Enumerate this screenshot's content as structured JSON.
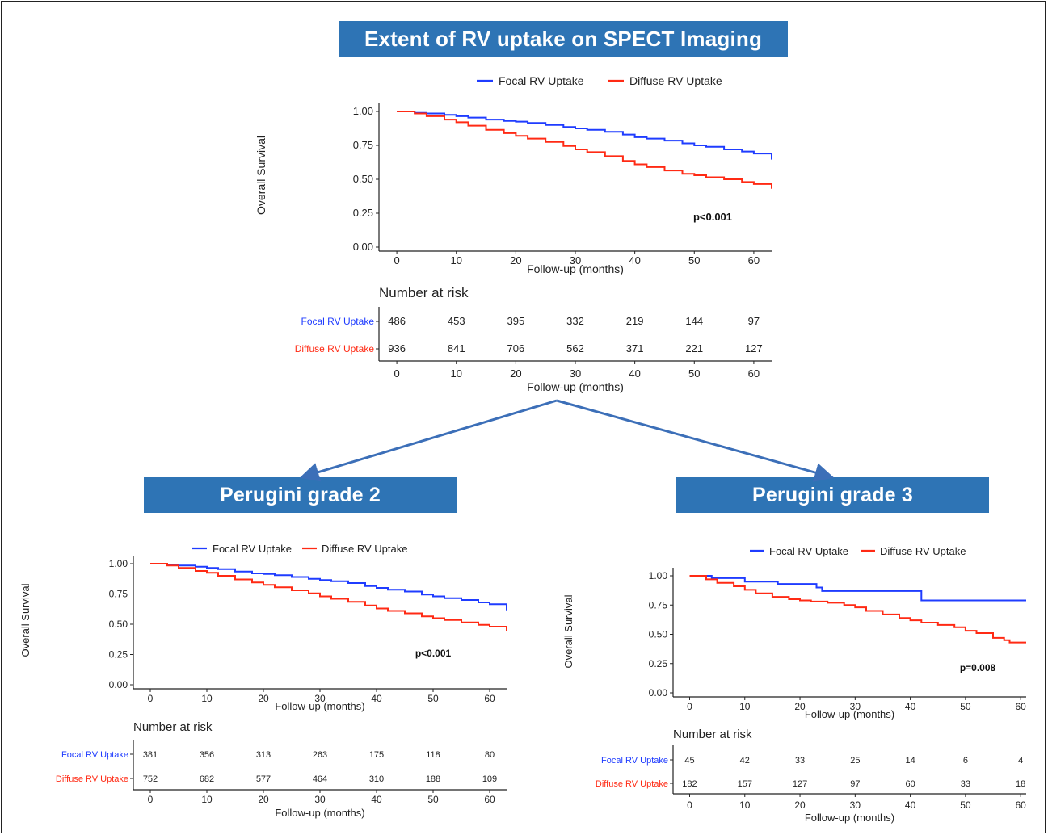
{
  "banners": {
    "main": "Extent of RV uptake on SPECT Imaging",
    "grade2": "Perugini grade 2",
    "grade3": "Perugini grade 3"
  },
  "colors": {
    "focal": "#1f3cff",
    "diffuse": "#ff2a14",
    "banner": "#2e74b5",
    "arrow": "#3c6fb8"
  },
  "chart_data": [
    {
      "id": "main",
      "type": "line",
      "series": [
        {
          "name": "Focal RV Uptake",
          "x": [
            0,
            3,
            5,
            8,
            10,
            12,
            15,
            18,
            20,
            22,
            25,
            28,
            30,
            32,
            35,
            38,
            40,
            42,
            45,
            48,
            50,
            52,
            55,
            58,
            60,
            63
          ],
          "y": [
            1.0,
            0.99,
            0.985,
            0.975,
            0.965,
            0.955,
            0.94,
            0.93,
            0.925,
            0.915,
            0.9,
            0.885,
            0.875,
            0.865,
            0.85,
            0.83,
            0.81,
            0.8,
            0.785,
            0.765,
            0.75,
            0.74,
            0.72,
            0.705,
            0.69,
            0.645
          ]
        },
        {
          "name": "Diffuse RV Uptake",
          "x": [
            0,
            3,
            5,
            8,
            10,
            12,
            15,
            18,
            20,
            22,
            25,
            28,
            30,
            32,
            35,
            38,
            40,
            42,
            45,
            48,
            50,
            52,
            55,
            58,
            60,
            63
          ],
          "y": [
            1.0,
            0.985,
            0.965,
            0.94,
            0.92,
            0.895,
            0.865,
            0.84,
            0.82,
            0.8,
            0.775,
            0.745,
            0.72,
            0.7,
            0.67,
            0.635,
            0.61,
            0.59,
            0.565,
            0.54,
            0.53,
            0.515,
            0.5,
            0.48,
            0.465,
            0.43
          ]
        }
      ],
      "xlabel": "Follow-up (months)",
      "ylabel": "Overall Survival",
      "xticks": [
        0,
        10,
        20,
        30,
        40,
        50,
        60
      ],
      "yticks": [
        0.0,
        0.25,
        0.5,
        0.75,
        1.0
      ],
      "ytick_labels": [
        "0.00",
        "0.25",
        "0.50",
        "0.75",
        "1.00"
      ],
      "xlim": [
        -3,
        63
      ],
      "ylim": [
        0,
        1
      ],
      "annotation": "p<0.001",
      "legend_position": "top",
      "risk_title": "Number at risk",
      "risk_xlabel": "Follow-up (months)",
      "risk_table": [
        {
          "name": "Focal RV Uptake",
          "values": [
            486,
            453,
            395,
            332,
            219,
            144,
            97
          ]
        },
        {
          "name": "Diffuse RV Uptake",
          "values": [
            936,
            841,
            706,
            562,
            371,
            221,
            127
          ]
        }
      ]
    },
    {
      "id": "grade2",
      "type": "line",
      "series": [
        {
          "name": "Focal RV Uptake",
          "x": [
            0,
            3,
            5,
            8,
            10,
            12,
            15,
            18,
            20,
            22,
            25,
            28,
            30,
            32,
            35,
            38,
            40,
            42,
            45,
            48,
            50,
            52,
            55,
            58,
            60,
            63
          ],
          "y": [
            1.0,
            0.99,
            0.985,
            0.975,
            0.965,
            0.955,
            0.935,
            0.92,
            0.915,
            0.905,
            0.89,
            0.875,
            0.865,
            0.855,
            0.84,
            0.815,
            0.8,
            0.785,
            0.77,
            0.745,
            0.73,
            0.715,
            0.7,
            0.68,
            0.665,
            0.615
          ]
        },
        {
          "name": "Diffuse RV Uptake",
          "x": [
            0,
            3,
            5,
            8,
            10,
            12,
            15,
            18,
            20,
            22,
            25,
            28,
            30,
            32,
            35,
            38,
            40,
            42,
            45,
            48,
            50,
            52,
            55,
            58,
            60,
            63
          ],
          "y": [
            1.0,
            0.985,
            0.965,
            0.94,
            0.925,
            0.9,
            0.87,
            0.845,
            0.825,
            0.805,
            0.78,
            0.755,
            0.73,
            0.71,
            0.685,
            0.655,
            0.63,
            0.61,
            0.59,
            0.565,
            0.55,
            0.535,
            0.515,
            0.495,
            0.48,
            0.44
          ]
        }
      ],
      "xlabel": "Follow-up (months)",
      "ylabel": "Overall Survival",
      "xticks": [
        0,
        10,
        20,
        30,
        40,
        50,
        60
      ],
      "yticks": [
        0.0,
        0.25,
        0.5,
        0.75,
        1.0
      ],
      "ytick_labels": [
        "0.00",
        "0.25",
        "0.50",
        "0.75",
        "1.00"
      ],
      "xlim": [
        -3,
        63
      ],
      "ylim": [
        0,
        1
      ],
      "annotation": "p<0.001",
      "legend_position": "top",
      "risk_title": "Number at risk",
      "risk_xlabel": "Follow-up (months)",
      "risk_table": [
        {
          "name": "Focal RV Uptake",
          "values": [
            381,
            356,
            313,
            263,
            175,
            118,
            80
          ]
        },
        {
          "name": "Diffuse RV Uptake",
          "values": [
            752,
            682,
            577,
            464,
            310,
            188,
            109
          ]
        }
      ]
    },
    {
      "id": "grade3",
      "type": "line",
      "series": [
        {
          "name": "Focal RV Uptake",
          "x": [
            0,
            4,
            4,
            10,
            10,
            16,
            16,
            23,
            23,
            24,
            24,
            42,
            42,
            61
          ],
          "y": [
            1.0,
            1.0,
            0.98,
            0.98,
            0.95,
            0.95,
            0.93,
            0.93,
            0.9,
            0.9,
            0.87,
            0.87,
            0.79,
            0.79
          ]
        },
        {
          "name": "Diffuse RV Uptake",
          "x": [
            0,
            3,
            5,
            8,
            10,
            12,
            15,
            18,
            20,
            22,
            25,
            28,
            30,
            32,
            35,
            38,
            40,
            42,
            45,
            48,
            50,
            52,
            55,
            57,
            58,
            61
          ],
          "y": [
            1.0,
            0.97,
            0.94,
            0.91,
            0.88,
            0.85,
            0.82,
            0.8,
            0.79,
            0.78,
            0.77,
            0.75,
            0.73,
            0.7,
            0.67,
            0.64,
            0.62,
            0.6,
            0.58,
            0.56,
            0.53,
            0.51,
            0.47,
            0.45,
            0.43,
            0.43
          ]
        }
      ],
      "xlabel": "Follow-up (months)",
      "ylabel": "Overall Survival",
      "xticks": [
        0,
        10,
        20,
        30,
        40,
        50,
        60
      ],
      "yticks": [
        0.0,
        0.25,
        0.5,
        0.75,
        1.0
      ],
      "ytick_labels": [
        "0.00",
        "0.25",
        "0.50",
        "0.75",
        "1.00"
      ],
      "xlim": [
        -3,
        61
      ],
      "ylim": [
        0,
        1
      ],
      "annotation": "p=0.008",
      "legend_position": "top",
      "risk_title": "Number at risk",
      "risk_xlabel": "Follow-up (months)",
      "risk_table": [
        {
          "name": "Focal RV Uptake",
          "values": [
            45,
            42,
            33,
            25,
            14,
            6,
            4
          ]
        },
        {
          "name": "Diffuse RV Uptake",
          "values": [
            182,
            157,
            127,
            97,
            60,
            33,
            18
          ]
        }
      ]
    }
  ]
}
